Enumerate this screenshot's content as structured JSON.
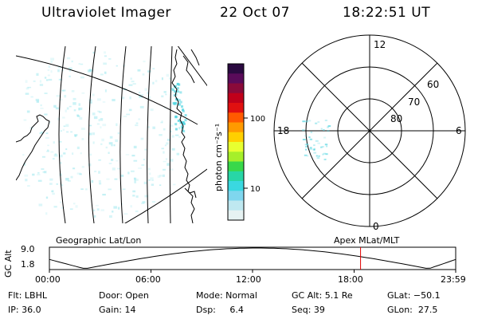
{
  "header": {
    "instrument": "Ultraviolet Imager",
    "date": "22 Oct 07",
    "time": "18:22:51 UT"
  },
  "colorbar": {
    "label": "photon cm⁻²s⁻¹",
    "ticks": [
      "100",
      "10"
    ],
    "colors": [
      "#2a0a40",
      "#5a0b5a",
      "#8a0a3a",
      "#c0001a",
      "#e01010",
      "#ff5a00",
      "#ff9a00",
      "#ffd000",
      "#e8ff30",
      "#a6ef2a",
      "#38d84a",
      "#28d6a6",
      "#3ad8e0",
      "#7fd6ee",
      "#bfe8f0",
      "#e6f2f2"
    ]
  },
  "polar": {
    "labels": {
      "top": "12",
      "left": "18",
      "right": "6",
      "bottom": "0"
    },
    "rings": [
      "60",
      "70",
      "80"
    ]
  },
  "geographic": {
    "emission_color": "#4fd4e0"
  },
  "altitude_plot": {
    "ylabel": "GC Alt",
    "yticks": [
      "9.0",
      "1.8"
    ],
    "left_label": "Geographic Lat/Lon",
    "right_label": "Apex MLat/MLT",
    "xticks": [
      "00:00",
      "06:00",
      "12:00",
      "18:00",
      "23:59"
    ],
    "marker_color": "#e00000",
    "marker_time": 18.38
  },
  "info": {
    "col1": [
      "Flt: LBHL",
      "IP: 36.0"
    ],
    "col2": [
      "Door: Open",
      "Gain: 14"
    ],
    "col3": [
      "Mode: Normal",
      "Dsp:     6.4"
    ],
    "col4": [
      "GC Alt: 5.1 Re",
      "Seq: 39"
    ],
    "col5": [
      "GLat: −50.1",
      "GLon:  27.5"
    ]
  }
}
